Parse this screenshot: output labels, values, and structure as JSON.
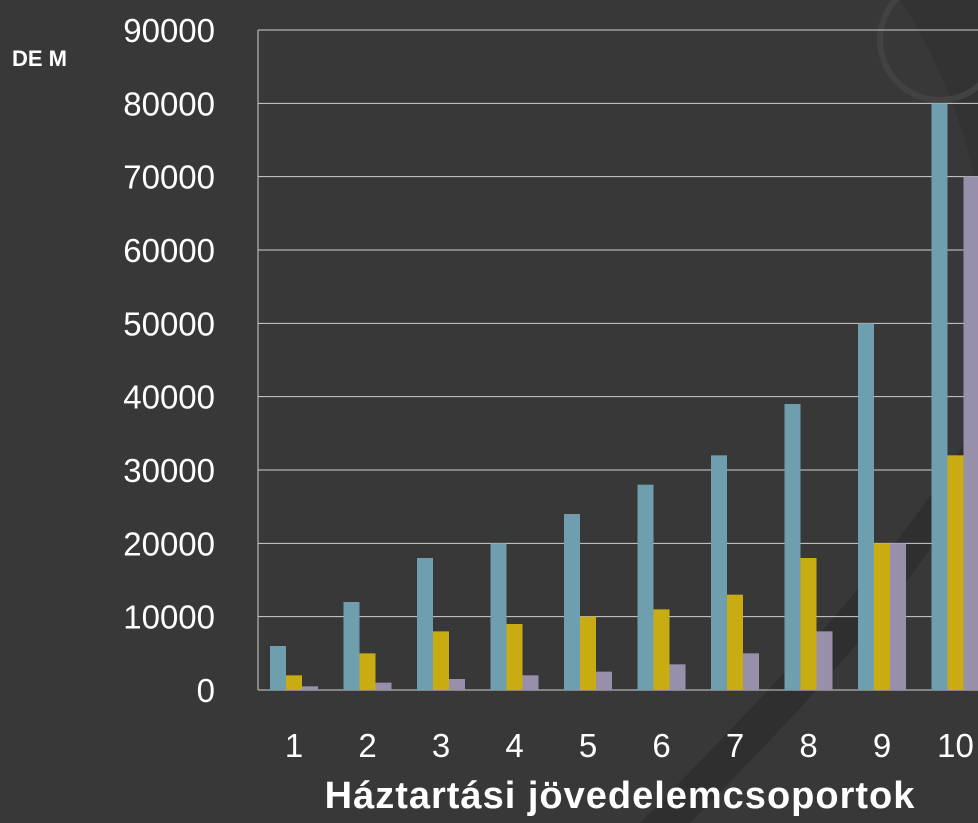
{
  "chart_data": {
    "type": "bar",
    "ylabel": "DE M",
    "xlabel": "Háztartási jövedelemcsoportok",
    "categories": [
      "1",
      "2",
      "3",
      "4",
      "5",
      "6",
      "7",
      "8",
      "9",
      "10"
    ],
    "ylim": [
      0,
      90000
    ],
    "yticks": [
      "0",
      "10000",
      "20000",
      "30000",
      "40000",
      "50000",
      "60000",
      "70000",
      "80000",
      "90000"
    ],
    "grid": true,
    "series": [
      {
        "color": "#6f9fae",
        "values": [
          6000,
          12000,
          18000,
          20000,
          24000,
          28000,
          32000,
          39000,
          50000,
          80000
        ]
      },
      {
        "color": "#c9ac12",
        "values": [
          2000,
          5000,
          8000,
          9000,
          10000,
          11000,
          13000,
          18000,
          20000,
          32000
        ]
      },
      {
        "color": "#9890aa",
        "values": [
          500,
          1000,
          1500,
          2000,
          2500,
          3500,
          5000,
          8000,
          20000,
          70000
        ]
      }
    ]
  }
}
